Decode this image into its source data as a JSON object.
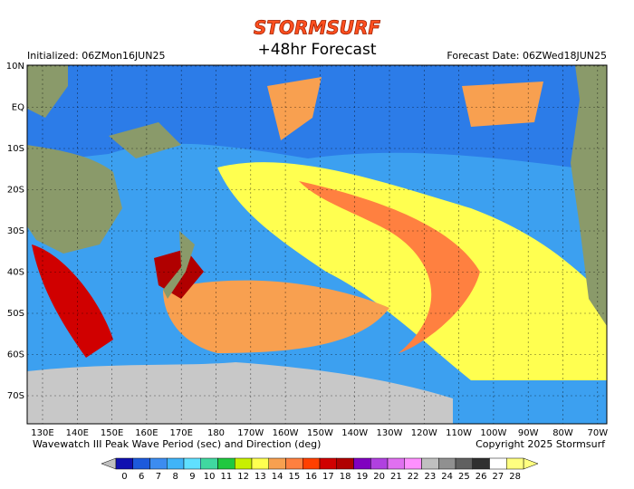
{
  "header": {
    "brand": "STORMSURF",
    "title": "+48hr Forecast",
    "initialized": "Initialized: 06ZMon16JUN25",
    "forecast_date": "Forecast Date: 06ZWed18JUN25"
  },
  "map": {
    "lat_labels": [
      "10N",
      "EQ",
      "10S",
      "20S",
      "30S",
      "40S",
      "50S",
      "60S",
      "70S"
    ],
    "lon_labels": [
      "130E",
      "140E",
      "150E",
      "160E",
      "170E",
      "180",
      "170W",
      "160W",
      "150W",
      "140W",
      "130W",
      "120W",
      "110W",
      "100W",
      "90W",
      "80W",
      "70W"
    ]
  },
  "footer": {
    "caption": "Wavewatch III Peak Wave Period (sec) and Direction (deg)",
    "copyright": "Copyright 2025 Stormsurf"
  },
  "legend": {
    "values": [
      0,
      6,
      7,
      8,
      9,
      10,
      11,
      12,
      13,
      14,
      15,
      16,
      17,
      18,
      19,
      20,
      21,
      22,
      23,
      24,
      25,
      26,
      27,
      28
    ],
    "colors": [
      "#1010b0",
      "#1c5adc",
      "#3c8cf0",
      "#40b4f8",
      "#60e0ff",
      "#40d8a0",
      "#20c840",
      "#c8f000",
      "#ffff50",
      "#f8a050",
      "#ff8040",
      "#ff4000",
      "#d00000",
      "#b00000",
      "#8000c0",
      "#b040e0",
      "#e070f0",
      "#ff90ff",
      "#c0c0c0",
      "#909090",
      "#606060",
      "#303030",
      "#ffffff",
      "#ffff80"
    ]
  }
}
